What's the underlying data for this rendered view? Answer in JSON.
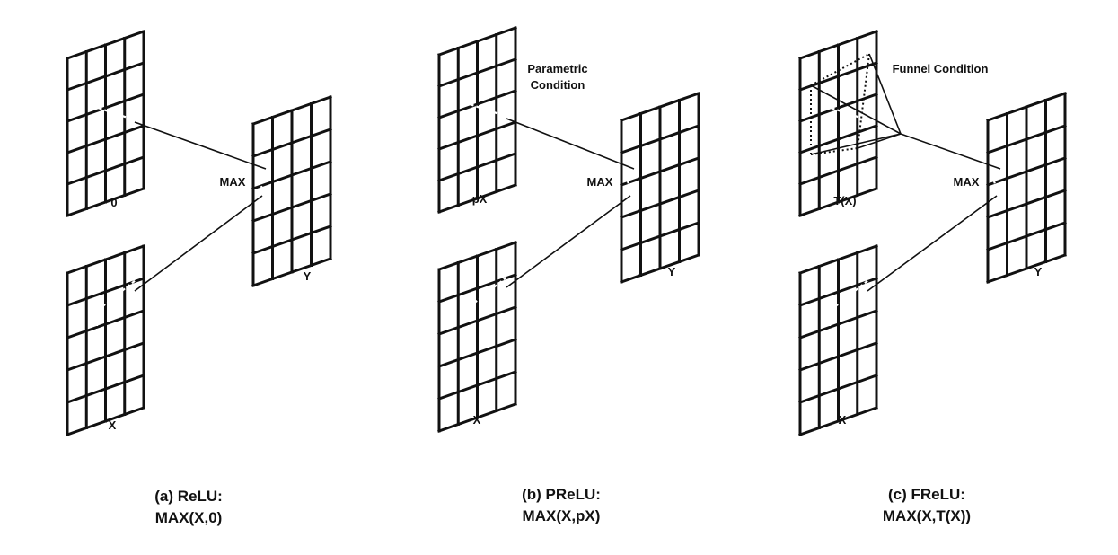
{
  "panels": [
    {
      "id": "relu",
      "top_grid_label": "0",
      "bottom_grid_label": "X",
      "output_label": "Y",
      "max_label": "MAX",
      "condition_label": "",
      "caption_line1": "(a) ReLU:",
      "caption_line2": "MAX(X,0)"
    },
    {
      "id": "prelu",
      "top_grid_label": "pX",
      "bottom_grid_label": "X",
      "output_label": "Y",
      "max_label": "MAX",
      "condition_label_line1": "Parametric",
      "condition_label_line2": "Condition",
      "caption_line1": "(b) PReLU:",
      "caption_line2": "MAX(X,pX)"
    },
    {
      "id": "frelu",
      "top_grid_label": "T(X)",
      "bottom_grid_label": "X",
      "output_label": "Y",
      "max_label": "MAX",
      "condition_label": "Funnel Condition",
      "caption_line1": "(c) FReLU:",
      "caption_line2": "MAX(X,T(X))"
    }
  ]
}
